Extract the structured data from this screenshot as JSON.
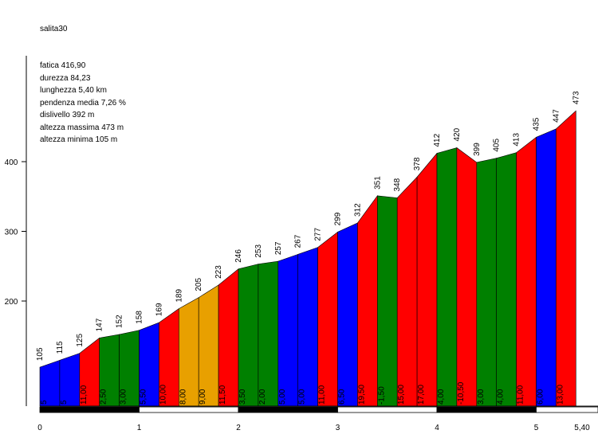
{
  "title": "salita30",
  "stats": [
    "fatica 416,90",
    "durezza 84,23",
    "lunghezza 5,40 km",
    "pendenza media 7,26 %",
    "dislivello 392 m",
    "altezza massima 473 m",
    "altezza minima 105 m"
  ],
  "colors": {
    "blue": "#0000ff",
    "red": "#ff0000",
    "green": "#008000",
    "orange": "#e8a000"
  },
  "chart_data": {
    "type": "area",
    "xlim": [
      0,
      5.4
    ],
    "ylim": [
      0,
      473
    ],
    "x_ticks": [
      "0",
      "1",
      "2",
      "3",
      "4",
      "5",
      "5,40"
    ],
    "x_tick_values": [
      0,
      1,
      2,
      3,
      4,
      5,
      5.4
    ],
    "y_ticks": [
      200,
      300,
      400
    ],
    "points": [
      {
        "x": 0.0,
        "y": 105
      },
      {
        "x": 0.2,
        "y": 115
      },
      {
        "x": 0.4,
        "y": 125
      },
      {
        "x": 0.6,
        "y": 147
      },
      {
        "x": 0.8,
        "y": 152
      },
      {
        "x": 1.0,
        "y": 158
      },
      {
        "x": 1.2,
        "y": 169
      },
      {
        "x": 1.4,
        "y": 189
      },
      {
        "x": 1.6,
        "y": 205
      },
      {
        "x": 1.8,
        "y": 223
      },
      {
        "x": 2.0,
        "y": 246
      },
      {
        "x": 2.2,
        "y": 253
      },
      {
        "x": 2.4,
        "y": 257
      },
      {
        "x": 2.6,
        "y": 267
      },
      {
        "x": 2.8,
        "y": 277
      },
      {
        "x": 3.0,
        "y": 299
      },
      {
        "x": 3.2,
        "y": 312
      },
      {
        "x": 3.4,
        "y": 351
      },
      {
        "x": 3.6,
        "y": 348
      },
      {
        "x": 3.8,
        "y": 378
      },
      {
        "x": 4.0,
        "y": 412
      },
      {
        "x": 4.2,
        "y": 420
      },
      {
        "x": 4.4,
        "y": 399
      },
      {
        "x": 4.6,
        "y": 405
      },
      {
        "x": 4.8,
        "y": 413
      },
      {
        "x": 5.0,
        "y": 435
      },
      {
        "x": 5.2,
        "y": 447
      },
      {
        "x": 5.4,
        "y": 473
      }
    ],
    "segments": [
      {
        "label": "5",
        "color": "blue"
      },
      {
        "label": "5",
        "color": "blue"
      },
      {
        "label": "11,00",
        "color": "red"
      },
      {
        "label": "2,50",
        "color": "green"
      },
      {
        "label": "3,00",
        "color": "green"
      },
      {
        "label": "5,50",
        "color": "blue"
      },
      {
        "label": "10,00",
        "color": "red"
      },
      {
        "label": "8,00",
        "color": "orange"
      },
      {
        "label": "9,00",
        "color": "orange"
      },
      {
        "label": "11,50",
        "color": "red"
      },
      {
        "label": "3,50",
        "color": "green"
      },
      {
        "label": "2,00",
        "color": "green"
      },
      {
        "label": "5,00",
        "color": "blue"
      },
      {
        "label": "5,00",
        "color": "blue"
      },
      {
        "label": "11,00",
        "color": "red"
      },
      {
        "label": "6,50",
        "color": "blue"
      },
      {
        "label": "19,50",
        "color": "red"
      },
      {
        "label": "-1,50",
        "color": "green"
      },
      {
        "label": "15,00",
        "color": "red"
      },
      {
        "label": "17,00",
        "color": "red"
      },
      {
        "label": "4,00",
        "color": "green"
      },
      {
        "label": "-10,50",
        "color": "red"
      },
      {
        "label": "3,00",
        "color": "green"
      },
      {
        "label": "4,00",
        "color": "green"
      },
      {
        "label": "11,00",
        "color": "red"
      },
      {
        "label": "6,00",
        "color": "blue"
      },
      {
        "label": "13,00",
        "color": "red"
      }
    ]
  }
}
